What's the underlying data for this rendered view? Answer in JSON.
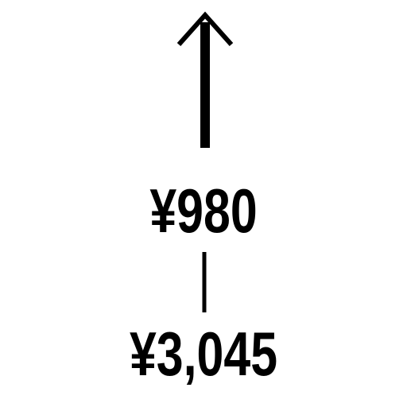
{
  "prices": {
    "top": "¥980",
    "bottom": "¥3,045"
  },
  "icons": {
    "arrow": "up-arrow-icon"
  },
  "colors": {
    "ink": "#000000",
    "background": "#ffffff"
  }
}
